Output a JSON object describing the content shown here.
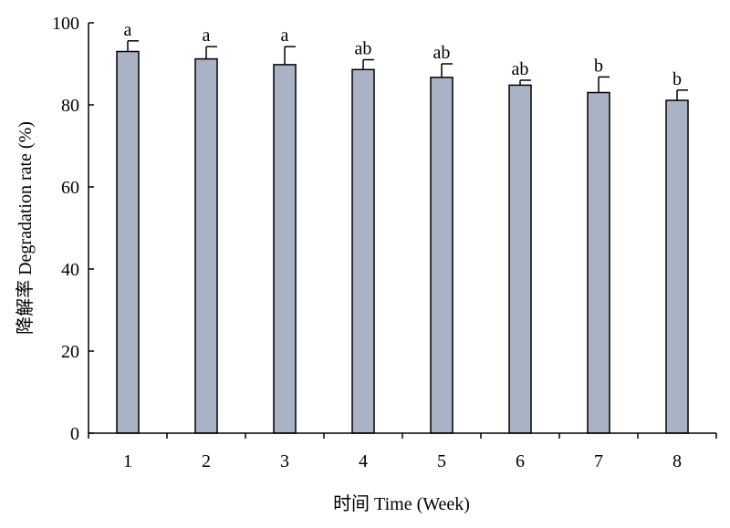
{
  "chart_data": {
    "type": "bar",
    "title": "",
    "xlabel": "时间 Time (Week)",
    "ylabel": "降解率 Degradation rate (%)",
    "categories": [
      "1",
      "2",
      "3",
      "4",
      "5",
      "6",
      "7",
      "8"
    ],
    "values": [
      93.0,
      91.2,
      89.8,
      88.6,
      86.7,
      84.8,
      83.0,
      81.1
    ],
    "errors": [
      2.6,
      3.0,
      4.4,
      2.4,
      3.3,
      1.2,
      3.8,
      2.5
    ],
    "significance": [
      "a",
      "a",
      "a",
      "ab",
      "ab",
      "ab",
      "b",
      "b"
    ],
    "ylim": [
      0,
      100
    ],
    "yticks": [
      0,
      20,
      40,
      60,
      80,
      100
    ],
    "grid": false,
    "colors": {
      "bar_fill": "#aab3c6",
      "bar_stroke": "#000000",
      "axis": "#000000"
    }
  }
}
